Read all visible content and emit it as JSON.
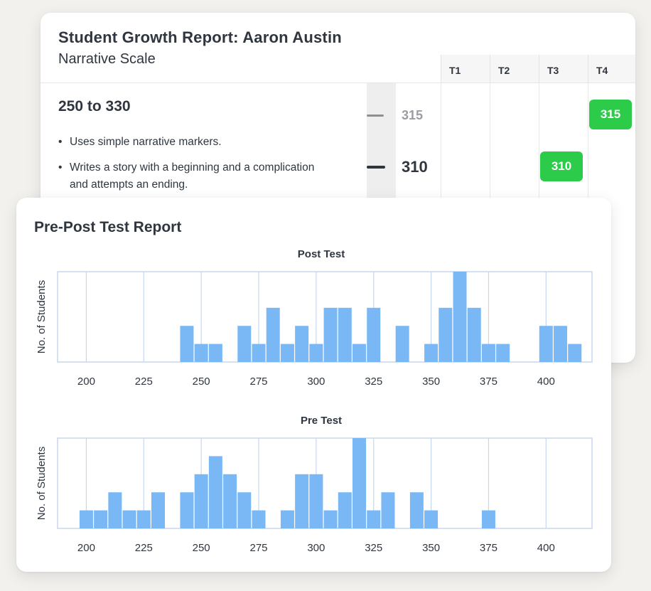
{
  "growth_report": {
    "title": "Student Growth Report: Aaron Austin",
    "subtitle": "Narrative Scale",
    "terms": [
      "T1",
      "T2",
      "T3",
      "T4"
    ],
    "band": {
      "title": "250 to 330",
      "bullets": [
        "Uses simple narrative markers.",
        "Writes a story with a beginning and a complication and attempts an ending."
      ]
    },
    "scale_scores": [
      {
        "label": "315",
        "emphasis": false
      },
      {
        "label": "310",
        "emphasis": true
      }
    ],
    "term_results": [
      {
        "term": "T4",
        "value": "315"
      },
      {
        "term": "T3",
        "value": "310"
      }
    ],
    "colors": {
      "pill": "#2ccc4a",
      "rail": "#eeeeef"
    }
  },
  "prepost_report": {
    "title": "Pre-Post Test Report"
  },
  "chart_data": [
    {
      "type": "bar",
      "title": "Post Test",
      "ylabel": "No. of Students",
      "xlabel": "",
      "xlim": [
        187.5,
        420
      ],
      "x_ticks": [
        200,
        225,
        250,
        275,
        300,
        325,
        350,
        375,
        400
      ],
      "bin_width": 6.25,
      "ylim": [
        0,
        5
      ],
      "grid": true,
      "color": "#7ab8f5",
      "x": [
        243.75,
        250,
        256.25,
        268.75,
        275,
        281.25,
        287.5,
        293.75,
        300,
        306.25,
        312.5,
        318.75,
        325,
        337.5,
        350,
        356.25,
        362.5,
        368.75,
        375,
        381.25,
        400,
        406.25,
        412.5
      ],
      "values": [
        2,
        1,
        1,
        2,
        1,
        3,
        1,
        2,
        1,
        3,
        3,
        1,
        3,
        2,
        1,
        3,
        5,
        3,
        1,
        1,
        2,
        2,
        1
      ]
    },
    {
      "type": "bar",
      "title": "Pre Test",
      "ylabel": "No. of Students",
      "xlabel": "",
      "xlim": [
        187.5,
        420
      ],
      "x_ticks": [
        200,
        225,
        250,
        275,
        300,
        325,
        350,
        375,
        400
      ],
      "bin_width": 6.25,
      "ylim": [
        0,
        5
      ],
      "grid": true,
      "color": "#7ab8f5",
      "x": [
        200,
        206.25,
        212.5,
        218.75,
        225,
        231.25,
        243.75,
        250,
        256.25,
        262.5,
        268.75,
        275,
        287.5,
        293.75,
        300,
        306.25,
        312.5,
        318.75,
        325,
        331.25,
        343.75,
        350,
        375
      ],
      "values": [
        1,
        1,
        2,
        1,
        1,
        2,
        2,
        3,
        4,
        3,
        2,
        1,
        1,
        3,
        3,
        1,
        2,
        5,
        1,
        2,
        2,
        1,
        1
      ]
    }
  ]
}
